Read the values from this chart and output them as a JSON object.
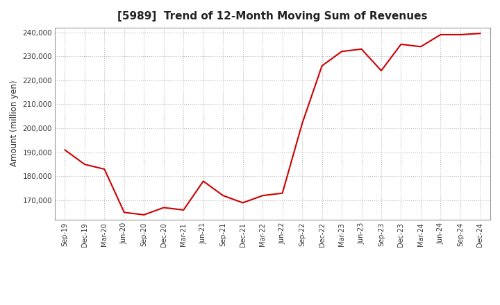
{
  "title": "[5989]  Trend of 12-Month Moving Sum of Revenues",
  "ylabel": "Amount (million yen)",
  "line_color": "#cc0000",
  "background_color": "#ffffff",
  "grid_color": "#bbbbbb",
  "x_labels": [
    "Sep-19",
    "Dec-19",
    "Mar-20",
    "Jun-20",
    "Sep-20",
    "Dec-20",
    "Mar-21",
    "Jun-21",
    "Sep-21",
    "Dec-21",
    "Mar-22",
    "Jun-22",
    "Sep-22",
    "Dec-22",
    "Mar-23",
    "Jun-23",
    "Sep-23",
    "Dec-23",
    "Mar-24",
    "Jun-24",
    "Sep-24",
    "Dec-24"
  ],
  "values": [
    191000,
    185000,
    183000,
    165000,
    164000,
    167000,
    166000,
    178000,
    172000,
    169000,
    172000,
    173000,
    202000,
    226000,
    232000,
    233000,
    224000,
    235000,
    234000,
    239000,
    239000,
    239500
  ],
  "ylim": [
    162000,
    242000
  ],
  "yticks": [
    170000,
    180000,
    190000,
    200000,
    210000,
    220000,
    230000,
    240000
  ],
  "title_fontsize": 11,
  "ylabel_fontsize": 8.5,
  "xtick_fontsize": 7,
  "ytick_fontsize": 7.5
}
